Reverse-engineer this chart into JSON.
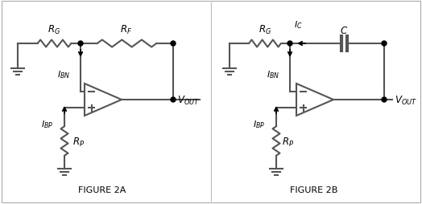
{
  "fig_label_A": "FIGURE 2A",
  "fig_label_B": "FIGURE 2B",
  "line_color": "#555555",
  "line_width": 1.5,
  "text_color": "#000000",
  "bg_color": "#ffffff",
  "border_color": "#aaaaaa"
}
